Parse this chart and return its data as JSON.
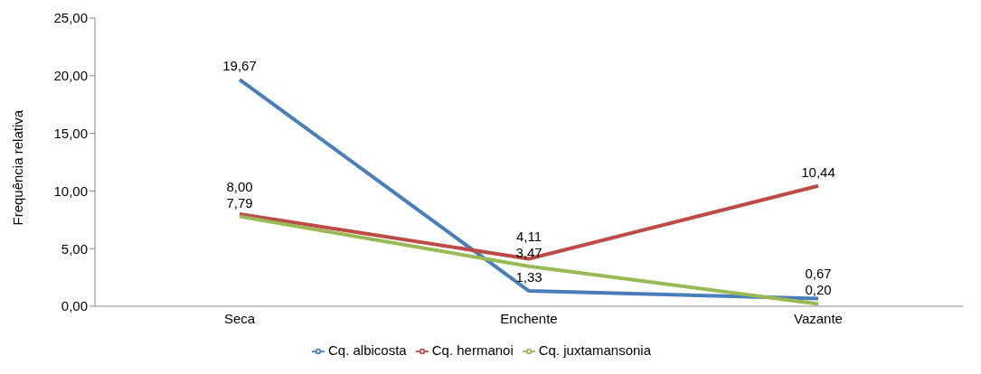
{
  "chart_data": {
    "type": "line",
    "ylabel": "Frequência relativa",
    "categories": [
      "Seca",
      "Enchente",
      "Vazante"
    ],
    "series": [
      {
        "name": "Cq. albicosta",
        "color": "#4a7ebb",
        "values": [
          19.67,
          1.33,
          0.67
        ],
        "value_labels": [
          "19,67",
          "1,33",
          "0,67"
        ]
      },
      {
        "name": "Cq. hermanoi",
        "color": "#be4b48",
        "values": [
          8.0,
          4.11,
          10.44
        ],
        "value_labels": [
          "8,00",
          "4,11",
          "10,44"
        ]
      },
      {
        "name": "Cq. juxtamansonia",
        "color": "#98b954",
        "values": [
          7.79,
          3.47,
          0.2
        ],
        "value_labels": [
          "7,79",
          "3,47",
          "0,20"
        ]
      }
    ],
    "ylim": [
      0,
      25
    ],
    "yticks": [
      {
        "value": 0,
        "label": "0,00"
      },
      {
        "value": 5,
        "label": "5,00"
      },
      {
        "value": 10,
        "label": "10,00"
      },
      {
        "value": 15,
        "label": "15,00"
      },
      {
        "value": 20,
        "label": "20,00"
      },
      {
        "value": 25,
        "label": "25,00"
      }
    ],
    "grid": false,
    "legend": "bottom",
    "marker": "none",
    "line_style": "solid"
  }
}
